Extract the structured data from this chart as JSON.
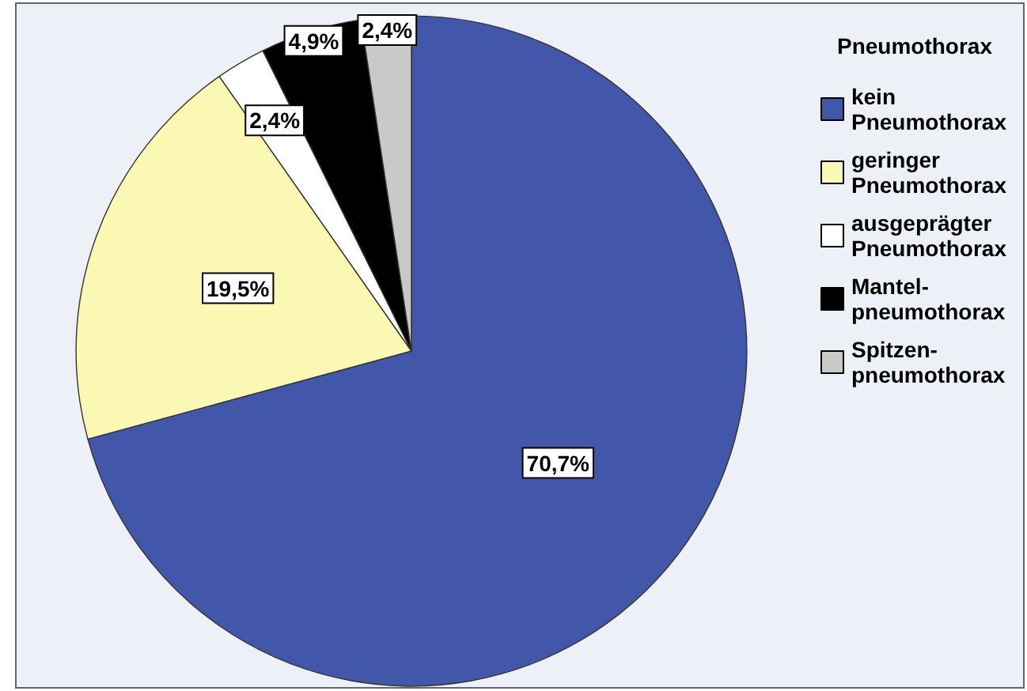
{
  "chart_data": {
    "type": "pie",
    "legend_title": "Pneumothorax",
    "categories": [
      "kein Pneumothorax",
      "geringer Pneumothorax",
      "ausgeprägter Pneumothorax",
      "Mantel-pneumothorax",
      "Spitzen-pneumothorax"
    ],
    "values": [
      70.7,
      19.5,
      2.4,
      4.9,
      2.4
    ],
    "colors": [
      "#4257a9",
      "#fbf8b4",
      "#ffffff",
      "#000000",
      "#c9c9c9"
    ],
    "value_labels": [
      "70,7%",
      "19,5%",
      "2,4%",
      "4,9%",
      "2,4%"
    ],
    "legend": "right"
  }
}
